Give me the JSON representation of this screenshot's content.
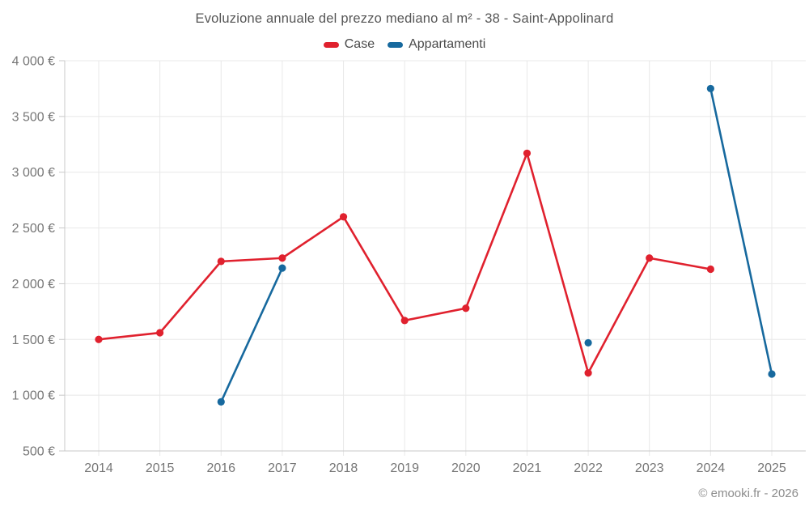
{
  "title": "Evoluzione annuale del prezzo mediano al m² - 38 - Saint-Appolinard",
  "footer": "© emooki.fr - 2026",
  "colors": {
    "case_red": "#e0212e",
    "appartamenti_blue": "#17699e",
    "gridline": "#e8e8e8",
    "axis": "#c9c9c9",
    "axis_label": "#767676",
    "title_text": "#565656"
  },
  "chart_data": {
    "type": "line",
    "title": "Evoluzione annuale del prezzo mediano al m² - 38 - Saint-Appolinard",
    "categories": [
      "2014",
      "2015",
      "2016",
      "2017",
      "2018",
      "2019",
      "2020",
      "2021",
      "2022",
      "2023",
      "2024",
      "2025"
    ],
    "series": [
      {
        "name": "Case",
        "color": "#e0212e",
        "values": [
          1500,
          1560,
          2200,
          2230,
          2600,
          1670,
          1780,
          3170,
          1200,
          2230,
          2130,
          null
        ]
      },
      {
        "name": "Appartamenti",
        "color": "#17699e",
        "values": [
          null,
          null,
          940,
          2140,
          null,
          null,
          null,
          null,
          1470,
          null,
          3750,
          1190
        ]
      }
    ],
    "xlabel": "",
    "ylabel": "",
    "ylim": [
      500,
      4000
    ],
    "ytick_step": 500,
    "ytick_suffix": " €",
    "grid": true,
    "legend_position": "top",
    "broken_line_on_null": true
  }
}
